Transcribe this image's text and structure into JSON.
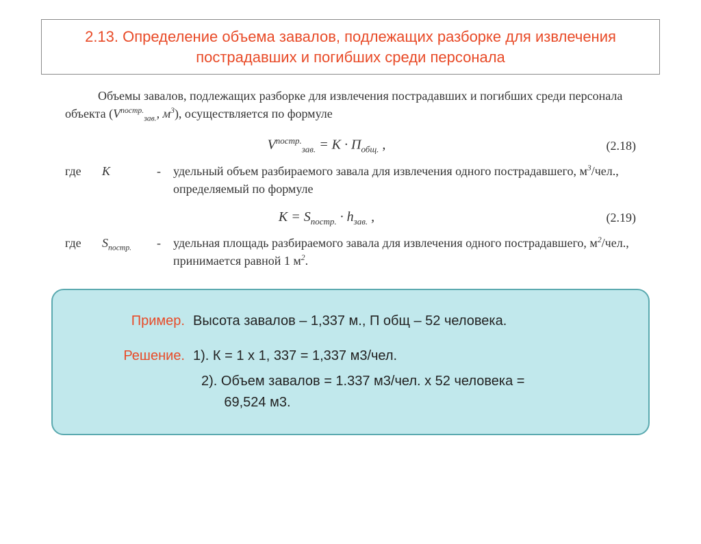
{
  "title": "2.13. Определение объема завалов, подлежащих разборке для извлечения пострадавших и погибших среди персонала",
  "intro_part1": "Объемы завалов, подлежащих разборке для извлечения пострадавших и погибших среди персонала объекта (",
  "intro_symbol_html": "V<span class='sup'>постр.</span><span class='sub'>зав.</span>, м<span class='sup'>3</span>",
  "intro_part2": "), осуществляется по формуле",
  "formula1_html": "V<span class='sup'>постр.</span><span class='sub'>зав.</span> = K · П<span class='sub'>общ.</span> ,",
  "formula1_num": "(2.18)",
  "def_where": "где",
  "def1_sym": "K",
  "def1_text_html": "удельный объем разбираемого завала для извлечения одного пострадавшего, м<span class='sup'>3</span>/чел., определяемый по формуле",
  "formula2_html": "K = S<span class='sub'>постр.</span> · h<span class='sub'>зав.</span> ,",
  "formula2_num": "(2.19)",
  "def2_sym_html": "S<span class='sub'>постр.</span>",
  "def2_text_html": "удельная площадь разбираемого завала для извлечения одного пострадавшего, м<span class='sup'>2</span>/чел., принимается равной 1 м<span class='sup'>2</span>.",
  "example": {
    "label": "Пример.",
    "given": "Высота завалов – 1,337 м., П общ – 52 человека.",
    "sol_label": "Решение.",
    "line1": "1). К = 1 х 1, 337 = 1,337 м3/чел.",
    "line2": "2). Объем завалов = 1.337 м3/чел. х 52 человека =",
    "line3": "      69,524 м3."
  },
  "colors": {
    "accent": "#e84a27",
    "box_bg": "#c1e8ec",
    "box_border": "#5aa9af",
    "text": "#333333"
  }
}
